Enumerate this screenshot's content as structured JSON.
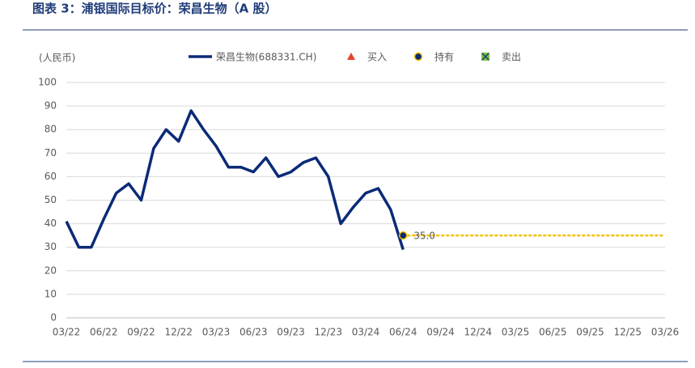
{
  "chart_data": {
    "type": "line",
    "title": "图表 3：浦银国际目标价：荣昌生物（A 股）",
    "y_label": "(人民币)",
    "x": [
      "03/22",
      "04/22",
      "05/22",
      "06/22",
      "07/22",
      "08/22",
      "09/22",
      "10/22",
      "11/22",
      "12/22",
      "01/23",
      "02/23",
      "03/23",
      "04/23",
      "05/23",
      "06/23",
      "07/23",
      "08/23",
      "09/23",
      "10/23",
      "11/23",
      "12/23",
      "01/24",
      "02/24",
      "03/24",
      "04/24",
      "05/24",
      "06/24"
    ],
    "series": [
      {
        "name": "荣昌生物(688331.CH)",
        "color": "#0b2a78",
        "values": [
          41,
          30,
          30,
          42,
          53,
          57,
          50,
          72,
          80,
          75,
          88,
          80,
          73,
          64,
          64,
          62,
          68,
          60,
          62,
          66,
          68,
          60,
          40,
          47,
          53,
          55,
          46,
          29
        ]
      }
    ],
    "target": {
      "name": "持有",
      "x": [
        "06/24",
        "03/26"
      ],
      "values": [
        35,
        35
      ],
      "value_labels": [
        "35.0"
      ],
      "color": "#f5c000",
      "marker_color": "#0b2a78"
    },
    "legend_markers": [
      {
        "name": "买入",
        "symbol": "triangle",
        "color": "#e8432a"
      },
      {
        "name": "持有",
        "symbol": "circle",
        "color": "#0b2a78"
      },
      {
        "name": "卖出",
        "symbol": "square",
        "color": "#7ac143"
      }
    ],
    "xlim": [
      "03/22",
      "03/26"
    ],
    "xticks": [
      "03/22",
      "06/22",
      "09/22",
      "12/22",
      "03/23",
      "06/23",
      "09/23",
      "12/23",
      "03/24",
      "06/24",
      "09/24",
      "12/24",
      "03/25",
      "06/25",
      "09/25",
      "12/25",
      "03/26"
    ],
    "ylim": [
      0,
      100
    ],
    "yticks": [
      0,
      10,
      20,
      30,
      40,
      50,
      60,
      70,
      80,
      90,
      100
    ],
    "grid": true
  }
}
